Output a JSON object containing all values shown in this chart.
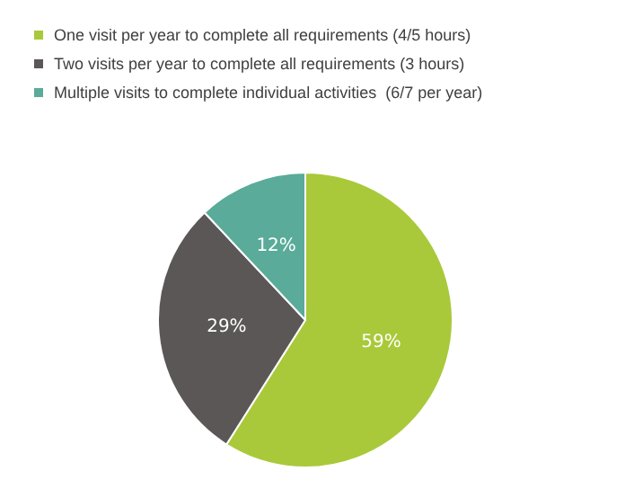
{
  "chart_data": {
    "type": "pie",
    "categories": [
      "One visit per year to complete all requirements (4/5 hours)",
      "Two visits per year to complete all requirements (3 hours)",
      "Multiple visits to complete individual activities  (6/7 per year)"
    ],
    "values": [
      59,
      29,
      12
    ],
    "colors": [
      "#a9c93a",
      "#5b5757",
      "#5aab99"
    ],
    "value_labels": [
      "59%",
      "29%",
      "12%"
    ],
    "legend": "top left"
  }
}
